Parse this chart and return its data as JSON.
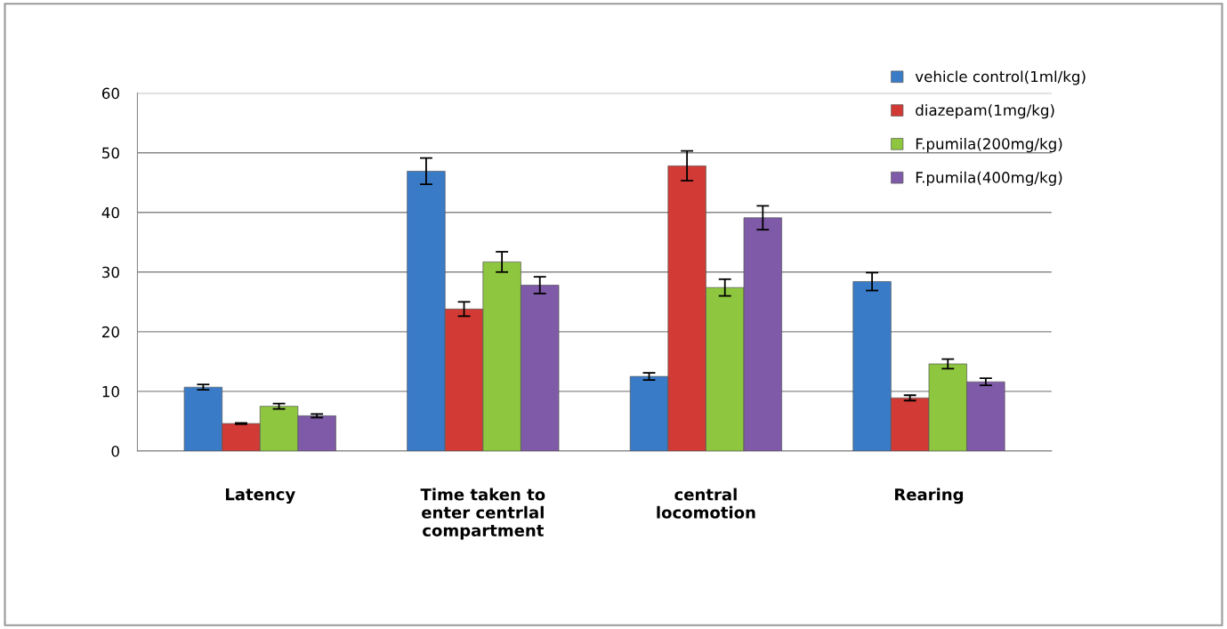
{
  "chart_data": {
    "type": "bar",
    "categories": [
      "Latency",
      "Time taken to\nenter centrlal\ncompartment",
      "central\nlocomotion",
      "Rearing"
    ],
    "series": [
      {
        "name": "vehicle control(1ml/kg)",
        "color": "#3a7bc8",
        "values": [
          10.7,
          46.9,
          12.5,
          28.4
        ],
        "errors": [
          0.45,
          2.2,
          0.6,
          1.5
        ]
      },
      {
        "name": "diazepam(1mg/kg)",
        "color": "#d23a35",
        "values": [
          4.6,
          23.8,
          47.8,
          8.9
        ],
        "errors": [
          0.1,
          1.2,
          2.5,
          0.45
        ]
      },
      {
        "name": "F.pumila(200mg/kg)",
        "color": "#8ec63f",
        "values": [
          7.5,
          31.7,
          27.4,
          14.6
        ],
        "errors": [
          0.45,
          1.7,
          1.4,
          0.8
        ]
      },
      {
        "name": "F.pumila(400mg/kg)",
        "color": "#7f5aa8",
        "values": [
          5.9,
          27.8,
          39.1,
          11.6
        ],
        "errors": [
          0.3,
          1.4,
          2.0,
          0.6
        ]
      }
    ],
    "ylim": [
      0,
      60
    ],
    "yticks": [
      0,
      10,
      20,
      30,
      40,
      50,
      60
    ],
    "grid": "y",
    "legend": "top right"
  }
}
